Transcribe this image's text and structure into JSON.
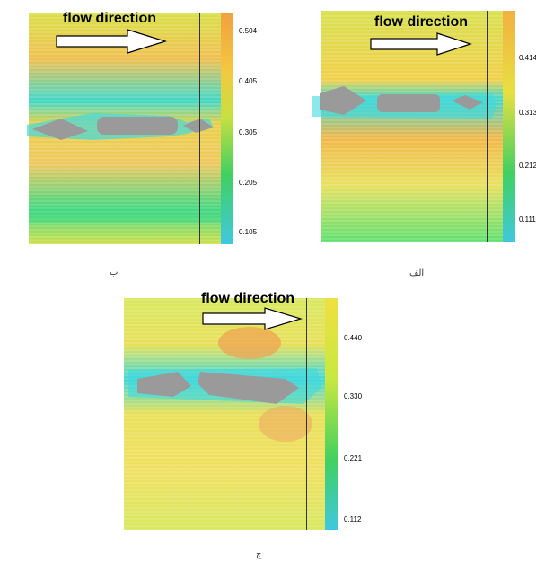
{
  "panels": [
    {
      "id": "b",
      "title": "flow direction",
      "caption": "ب",
      "colorbar_ticks": [
        "0.504",
        "0.405",
        "0.305",
        "0.205",
        "0.105"
      ],
      "colormap": [
        "#f2a040",
        "#f3c840",
        "#c8e040",
        "#40d060",
        "#40c8e0"
      ]
    },
    {
      "id": "alef",
      "title": "flow direction",
      "caption": "الف",
      "colorbar_ticks": [
        "0.414",
        "0.313",
        "0.212",
        "0.111"
      ],
      "colormap": [
        "#f2b040",
        "#e8e040",
        "#40d060",
        "#40c8e0"
      ]
    },
    {
      "id": "jim",
      "title": "flow direction",
      "caption": "ج",
      "colorbar_ticks": [
        "0.440",
        "0.330",
        "0.221",
        "0.112"
      ],
      "colormap": [
        "#f0e040",
        "#c8e840",
        "#40d060",
        "#40c8e0"
      ]
    }
  ]
}
